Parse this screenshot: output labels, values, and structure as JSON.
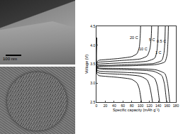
{
  "chart_data": {
    "type": "line",
    "x_label": "Specific capacity (mAh g⁻¹)",
    "y_label": "Voltage (V)",
    "xlim": [
      0,
      180
    ],
    "xticks": [
      0,
      20,
      40,
      60,
      80,
      100,
      120,
      140,
      160,
      180
    ],
    "ylim": [
      2.5,
      4.5
    ],
    "yticks": [
      2.5,
      {
        "value": 3.0,
        "label": "3.0"
      },
      3.5,
      {
        "value": 4.0,
        "label": "4.0"
      },
      4.5
    ],
    "grid": false,
    "series": [
      {
        "name": "20 C",
        "color": "#000000",
        "x": [
          0,
          1,
          5,
          20,
          50,
          80,
          92,
          97,
          99,
          100,
          null,
          0,
          1,
          5,
          20,
          50,
          80,
          92,
          97,
          100,
          102
        ],
        "values": [
          3.3,
          3.55,
          3.6,
          3.62,
          3.65,
          3.7,
          3.78,
          3.95,
          4.2,
          4.5,
          null,
          4.2,
          3.25,
          3.2,
          3.18,
          3.15,
          3.1,
          3.0,
          2.85,
          2.65,
          2.5
        ]
      },
      {
        "name": "10 C",
        "color": "#000000",
        "x": [
          0,
          1,
          5,
          25,
          60,
          100,
          115,
          121,
          124,
          125,
          null,
          0,
          1,
          5,
          25,
          60,
          100,
          115,
          121,
          125,
          127
        ],
        "values": [
          3.3,
          3.52,
          3.55,
          3.57,
          3.6,
          3.64,
          3.72,
          3.9,
          4.2,
          4.5,
          null,
          4.2,
          3.3,
          3.27,
          3.25,
          3.23,
          3.18,
          3.08,
          2.9,
          2.65,
          2.5
        ]
      },
      {
        "name": "5 C",
        "color": "#000000",
        "x": [
          0,
          1,
          5,
          30,
          70,
          115,
          132,
          137,
          139,
          140,
          null,
          0,
          1,
          5,
          30,
          70,
          115,
          132,
          138,
          141,
          143
        ],
        "values": [
          3.3,
          3.48,
          3.5,
          3.52,
          3.54,
          3.58,
          3.66,
          3.85,
          4.15,
          4.5,
          null,
          4.2,
          3.35,
          3.32,
          3.3,
          3.28,
          3.24,
          3.12,
          2.92,
          2.68,
          2.5
        ]
      },
      {
        "name": "1 C",
        "color": "#000000",
        "x": [
          0,
          1,
          5,
          35,
          80,
          130,
          148,
          153,
          155,
          156,
          null,
          0,
          1,
          5,
          35,
          80,
          130,
          148,
          154,
          157,
          159
        ],
        "values": [
          3.3,
          3.44,
          3.46,
          3.47,
          3.49,
          3.52,
          3.6,
          3.8,
          4.1,
          4.5,
          null,
          4.2,
          3.4,
          3.38,
          3.36,
          3.35,
          3.31,
          3.2,
          2.98,
          2.7,
          2.5
        ]
      },
      {
        "name": "0.5 C",
        "color": "#000000",
        "x": [
          0,
          1,
          5,
          40,
          85,
          135,
          155,
          160,
          162,
          163,
          null,
          0,
          1,
          5,
          40,
          85,
          135,
          155,
          161,
          164,
          166
        ],
        "values": [
          3.3,
          3.42,
          3.44,
          3.45,
          3.46,
          3.49,
          3.56,
          3.75,
          4.1,
          4.5,
          null,
          4.2,
          3.42,
          3.4,
          3.39,
          3.38,
          3.35,
          3.25,
          3.0,
          2.72,
          2.5
        ]
      }
    ]
  },
  "micrographs": {
    "scale_bar": "100 nm"
  }
}
